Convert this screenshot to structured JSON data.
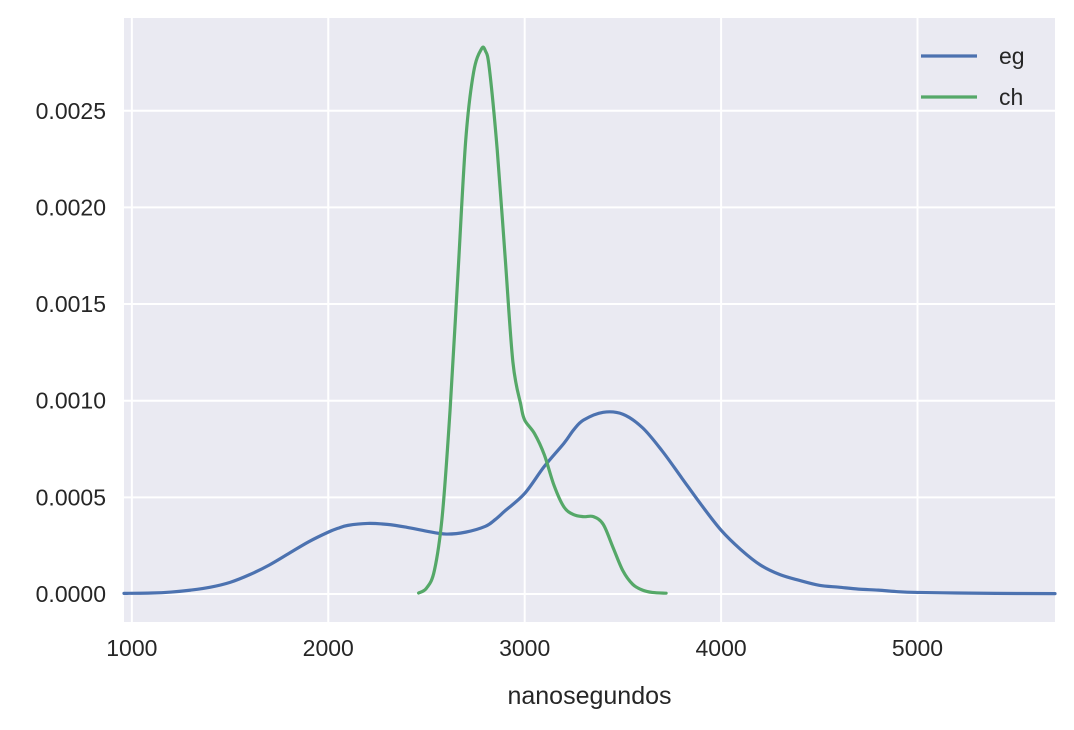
{
  "chart_data": {
    "type": "line",
    "title": "",
    "xlabel": "nanosegundos",
    "ylabel": "",
    "xlim": [
      960,
      5700
    ],
    "ylim": [
      -0.000145,
      0.00298
    ],
    "xticks": [
      1000,
      2000,
      3000,
      4000,
      5000
    ],
    "xtick_labels": [
      "1000",
      "2000",
      "3000",
      "4000",
      "5000"
    ],
    "yticks": [
      0.0,
      0.0005,
      0.001,
      0.0015,
      0.002,
      0.0025
    ],
    "ytick_labels": [
      "0.0000",
      "0.0005",
      "0.0010",
      "0.0015",
      "0.0020",
      "0.0025"
    ],
    "grid": true,
    "legend_position": "top-right",
    "series": [
      {
        "name": "eg",
        "color": "#4c72b0",
        "x": [
          960,
          1100,
          1200,
          1300,
          1400,
          1500,
          1600,
          1700,
          1800,
          1900,
          2000,
          2050,
          2100,
          2200,
          2300,
          2400,
          2500,
          2600,
          2700,
          2800,
          2850,
          2900,
          3000,
          3100,
          3200,
          3250,
          3300,
          3400,
          3500,
          3600,
          3700,
          3800,
          3900,
          4000,
          4100,
          4200,
          4300,
          4400,
          4500,
          4600,
          4700,
          4800,
          4900,
          5000,
          5200,
          5400,
          5700
        ],
        "y": [
          3e-06,
          5e-06,
          1e-05,
          2e-05,
          3.5e-05,
          6e-05,
          0.0001,
          0.00015,
          0.00021,
          0.00027,
          0.00032,
          0.00034,
          0.000355,
          0.000365,
          0.00036,
          0.000345,
          0.000325,
          0.00031,
          0.00032,
          0.00035,
          0.000385,
          0.00043,
          0.00052,
          0.00066,
          0.00078,
          0.00085,
          0.0009,
          0.00094,
          0.00093,
          0.00086,
          0.00074,
          0.0006,
          0.00046,
          0.00033,
          0.00023,
          0.00015,
          0.0001,
          7e-05,
          4.5e-05,
          3.5e-05,
          2.5e-05,
          2e-05,
          1.2e-05,
          8e-06,
          5e-06,
          3e-06,
          2e-06
        ]
      },
      {
        "name": "ch",
        "color": "#55a868",
        "x": [
          2460,
          2500,
          2540,
          2580,
          2620,
          2660,
          2700,
          2740,
          2780,
          2800,
          2820,
          2860,
          2900,
          2940,
          2980,
          3000,
          3050,
          3100,
          3150,
          3200,
          3250,
          3300,
          3350,
          3400,
          3450,
          3500,
          3550,
          3600,
          3650,
          3720
        ],
        "y": [
          5e-06,
          3e-05,
          0.00012,
          0.0004,
          0.00095,
          0.00165,
          0.00235,
          0.0027,
          0.00282,
          0.00281,
          0.00272,
          0.0023,
          0.00175,
          0.0012,
          0.00098,
          0.0009,
          0.00083,
          0.00072,
          0.00056,
          0.00045,
          0.00041,
          0.0004,
          0.0004,
          0.00036,
          0.00024,
          0.00012,
          5e-05,
          2e-05,
          8e-06,
          4e-06
        ]
      }
    ]
  }
}
